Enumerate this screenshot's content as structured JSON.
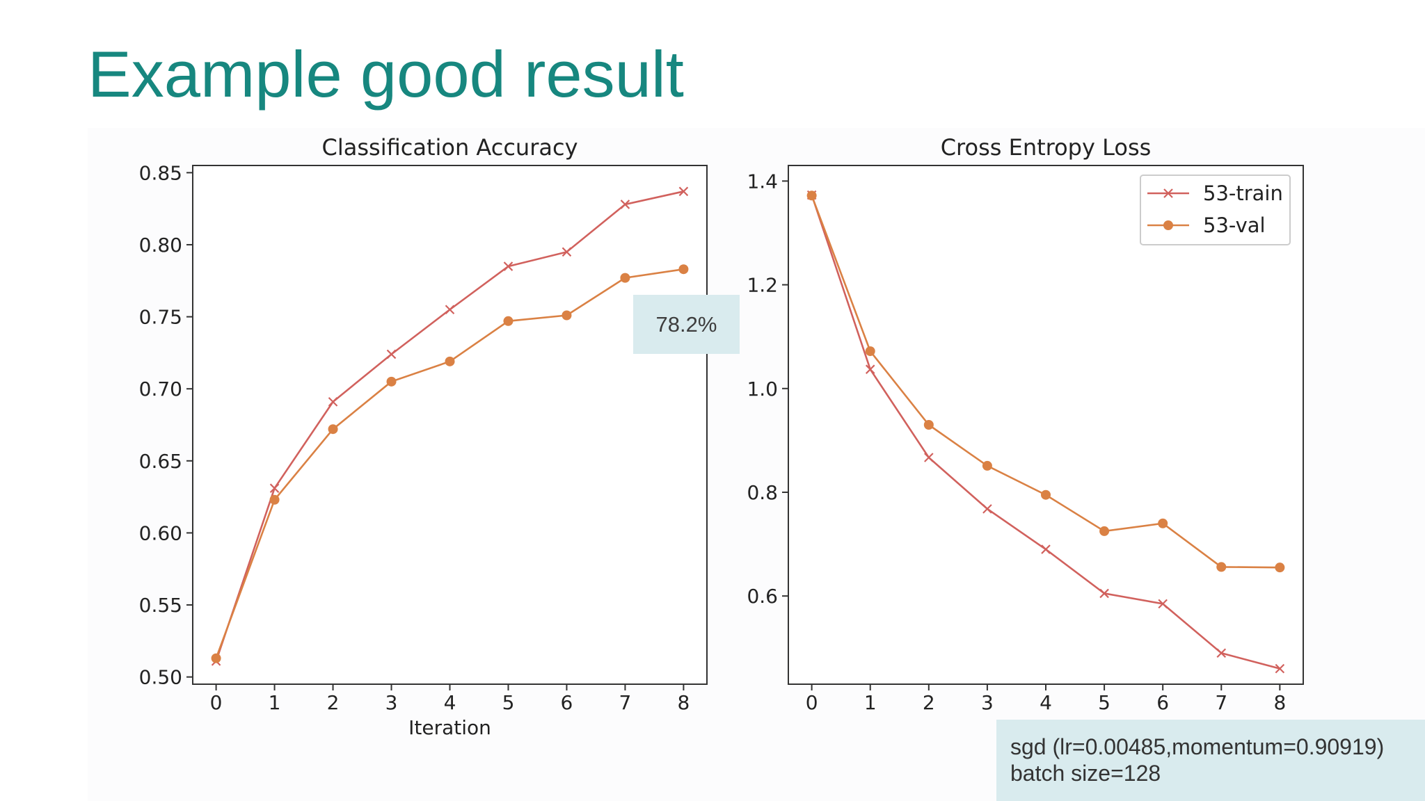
{
  "slide": {
    "title": "Example good result",
    "accuracy_label": "78.2%",
    "optimizer_line": "sgd (lr=0.00485,momentum=0.90919)",
    "batch_line": "batch size=128"
  },
  "colors": {
    "title": "#17877f",
    "train": "#d1615d",
    "val": "#da8144",
    "label_box": "#d9ebee"
  },
  "chart_data": [
    {
      "type": "line",
      "title": "Classification Accuracy",
      "xlabel": "Iteration",
      "ylabel": "",
      "x": [
        0,
        1,
        2,
        3,
        4,
        5,
        6,
        7,
        8
      ],
      "xlim": [
        -0.4,
        8.4
      ],
      "ylim": [
        0.495,
        0.855
      ],
      "yticks": [
        0.5,
        0.55,
        0.6,
        0.65,
        0.7,
        0.75,
        0.8,
        0.85
      ],
      "ytick_labels": [
        "0.50",
        "0.55",
        "0.60",
        "0.65",
        "0.70",
        "0.75",
        "0.80",
        "0.85"
      ],
      "xtick_labels": [
        "0",
        "1",
        "2",
        "3",
        "4",
        "5",
        "6",
        "7",
        "8"
      ],
      "legend": null,
      "series": [
        {
          "name": "53-train",
          "marker": "x",
          "values": [
            0.511,
            0.631,
            0.691,
            0.724,
            0.755,
            0.785,
            0.795,
            0.828,
            0.837
          ]
        },
        {
          "name": "53-val",
          "marker": "o",
          "values": [
            0.513,
            0.623,
            0.672,
            0.705,
            0.719,
            0.747,
            0.751,
            0.777,
            0.783
          ]
        }
      ]
    },
    {
      "type": "line",
      "title": "Cross Entropy Loss",
      "xlabel": "",
      "ylabel": "",
      "x": [
        0,
        1,
        2,
        3,
        4,
        5,
        6,
        7,
        8
      ],
      "xlim": [
        -0.4,
        8.4
      ],
      "ylim": [
        0.43,
        1.43
      ],
      "yticks": [
        0.6,
        0.8,
        1.0,
        1.2,
        1.4
      ],
      "ytick_labels": [
        "0.6",
        "0.8",
        "1.0",
        "1.2",
        "1.4"
      ],
      "xtick_labels": [
        "0",
        "1",
        "2",
        "3",
        "4",
        "5",
        "6",
        "7",
        "8"
      ],
      "legend": "top-right",
      "series": [
        {
          "name": "53-train",
          "marker": "x",
          "values": [
            1.373,
            1.037,
            0.867,
            0.768,
            0.69,
            0.605,
            0.585,
            0.49,
            0.46
          ]
        },
        {
          "name": "53-val",
          "marker": "o",
          "values": [
            1.372,
            1.072,
            0.93,
            0.851,
            0.795,
            0.725,
            0.74,
            0.656,
            0.655
          ]
        }
      ]
    }
  ]
}
